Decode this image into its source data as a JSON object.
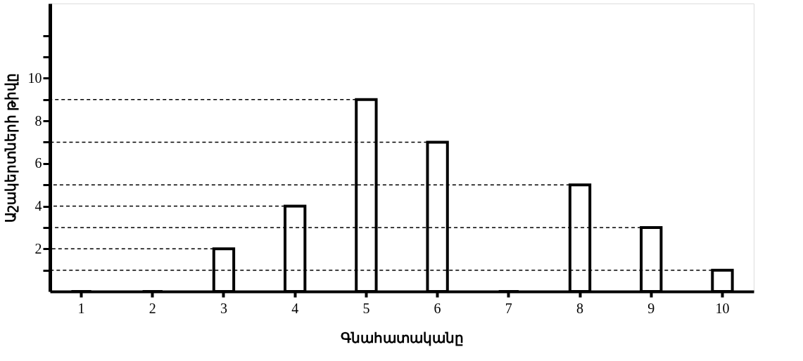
{
  "chart_data": {
    "type": "bar",
    "xlabel": "Գնահատականը",
    "ylabel": "Աշակերտների թիվը",
    "categories": [
      "1",
      "2",
      "3",
      "4",
      "5",
      "6",
      "7",
      "8",
      "9",
      "10"
    ],
    "values": [
      0,
      0,
      2,
      4,
      9,
      7,
      0,
      5,
      3,
      1
    ],
    "color": "#ffffff",
    "ylim": [
      0,
      13.5
    ],
    "yticks": [
      {
        "value": 1,
        "label": null
      },
      2,
      {
        "value": 3,
        "label": null
      },
      4,
      {
        "value": 5,
        "label": null
      },
      6,
      {
        "value": 7,
        "label": null
      },
      8,
      {
        "value": 9,
        "label": null
      },
      10,
      {
        "value": 11,
        "label": null
      },
      {
        "value": 12,
        "label": null
      }
    ],
    "ref_lines": [
      {
        "axis": "y",
        "value": 9,
        "color": "#000000",
        "line_style": "dashed"
      },
      {
        "axis": "y",
        "value": 7,
        "color": "#000000",
        "line_style": "dashed"
      },
      {
        "axis": "y",
        "value": 5,
        "color": "#000000",
        "line_style": "dashed"
      },
      {
        "axis": "y",
        "value": 4,
        "color": "#000000",
        "line_style": "dashed"
      },
      {
        "axis": "y",
        "value": 3,
        "color": "#000000",
        "line_style": "dashed"
      },
      {
        "axis": "y",
        "value": 2,
        "color": "#000000",
        "line_style": "dashed"
      },
      {
        "axis": "y",
        "value": 1,
        "color": "#000000",
        "line_style": "dashed"
      }
    ],
    "grid": false,
    "legend": false
  }
}
